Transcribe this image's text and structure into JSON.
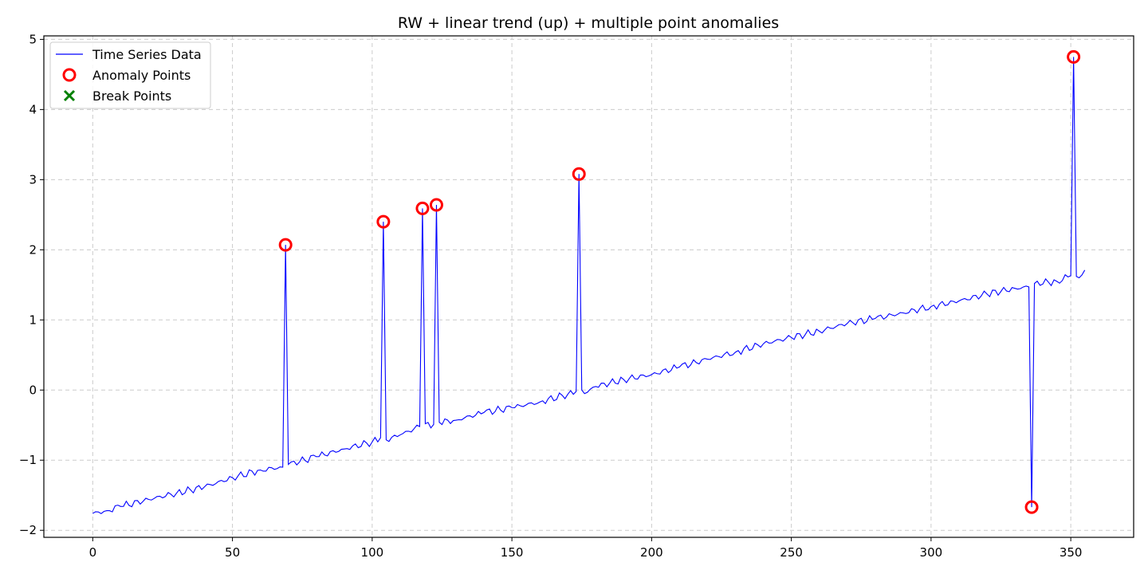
{
  "chart_data": {
    "type": "line",
    "title": "RW + linear trend (up) + multiple point anomalies",
    "xlabel": "",
    "ylabel": "",
    "xlim": [
      -17.5,
      372.5
    ],
    "ylim": [
      -2.1,
      5.05
    ],
    "grid": true,
    "legend_position": "top-left",
    "x_ticks": [
      0,
      50,
      100,
      150,
      200,
      250,
      300,
      350
    ],
    "x_tick_labels": [
      "0",
      "50",
      "100",
      "150",
      "200",
      "250",
      "300",
      "350"
    ],
    "y_ticks": [
      -2,
      -1,
      0,
      1,
      2,
      3,
      4,
      5
    ],
    "y_tick_labels": [
      "−2",
      "−1",
      "0",
      "1",
      "2",
      "3",
      "4",
      "5"
    ],
    "colors": {
      "series": "#0000ff",
      "anomaly": "#ff0000",
      "break": "#008000",
      "grid": "#cccccc"
    },
    "legend": [
      {
        "label": "Time Series Data",
        "marker": "line",
        "color": "#0000ff"
      },
      {
        "label": "Anomaly Points",
        "marker": "circle",
        "color": "#ff0000"
      },
      {
        "label": "Break Points",
        "marker": "x",
        "color": "#008000"
      }
    ],
    "series_keypoints": [
      [
        0,
        -1.76
      ],
      [
        5,
        -1.72
      ],
      [
        10,
        -1.66
      ],
      [
        20,
        -1.56
      ],
      [
        30,
        -1.47
      ],
      [
        40,
        -1.38
      ],
      [
        50,
        -1.25
      ],
      [
        60,
        -1.14
      ],
      [
        68,
        -1.1
      ],
      [
        69,
        2.07
      ],
      [
        70,
        -1.06
      ],
      [
        80,
        -0.95
      ],
      [
        90,
        -0.84
      ],
      [
        100,
        -0.74
      ],
      [
        103,
        -0.68
      ],
      [
        104,
        2.4
      ],
      [
        105,
        -0.71
      ],
      [
        110,
        -0.64
      ],
      [
        117,
        -0.52
      ],
      [
        118,
        2.59
      ],
      [
        119,
        -0.48
      ],
      [
        122,
        -0.49
      ],
      [
        123,
        2.64
      ],
      [
        124,
        -0.46
      ],
      [
        130,
        -0.43
      ],
      [
        140,
        -0.32
      ],
      [
        150,
        -0.25
      ],
      [
        160,
        -0.17
      ],
      [
        170,
        -0.06
      ],
      [
        173,
        -0.02
      ],
      [
        174,
        3.08
      ],
      [
        175,
        0.0
      ],
      [
        176,
        -0.05
      ],
      [
        180,
        0.05
      ],
      [
        190,
        0.15
      ],
      [
        200,
        0.22
      ],
      [
        210,
        0.33
      ],
      [
        220,
        0.44
      ],
      [
        230,
        0.54
      ],
      [
        240,
        0.66
      ],
      [
        250,
        0.75
      ],
      [
        260,
        0.84
      ],
      [
        270,
        0.95
      ],
      [
        280,
        1.02
      ],
      [
        290,
        1.1
      ],
      [
        300,
        1.19
      ],
      [
        310,
        1.27
      ],
      [
        320,
        1.37
      ],
      [
        330,
        1.45
      ],
      [
        335,
        1.47
      ],
      [
        336,
        -1.67
      ],
      [
        337,
        1.52
      ],
      [
        345,
        1.55
      ],
      [
        350,
        1.63
      ],
      [
        351,
        4.75
      ],
      [
        352,
        1.62
      ],
      [
        353,
        1.6
      ],
      [
        355,
        1.71
      ]
    ],
    "anomaly_points": [
      {
        "x": 69,
        "y": 2.07
      },
      {
        "x": 104,
        "y": 2.4
      },
      {
        "x": 118,
        "y": 2.59
      },
      {
        "x": 123,
        "y": 2.64
      },
      {
        "x": 174,
        "y": 3.08
      },
      {
        "x": 336,
        "y": -1.67
      },
      {
        "x": 351,
        "y": 4.75
      }
    ],
    "break_points": []
  }
}
